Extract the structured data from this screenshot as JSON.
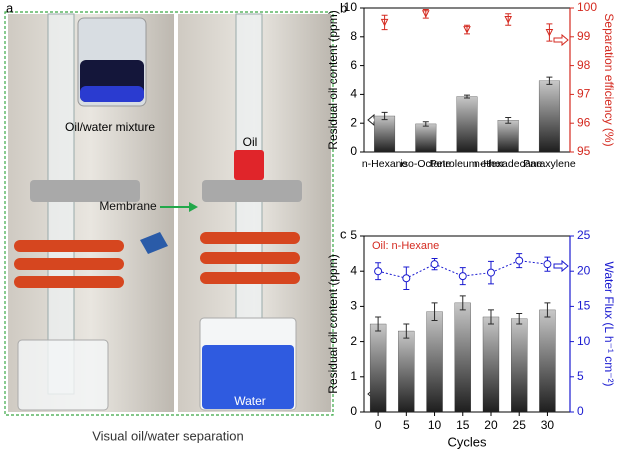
{
  "panel_a": {
    "label": "a",
    "photo_labels": [
      "Oil/water mixture",
      "Oil",
      "Membrane",
      "Water"
    ],
    "caption": "Visual oil/water separation"
  },
  "chart_data": [
    {
      "type": "bar",
      "panel_label": "b",
      "categories": [
        "n-Hexane",
        "iso-Octane",
        "Petroleum ether",
        "n-Hexadecane",
        "Paraxylene"
      ],
      "ylabel": "Residual oil content (ppm)",
      "y2label": "Separation efficiency (%)",
      "y2color": "#d42a20",
      "ylim": [
        0,
        10
      ],
      "yticks": [
        0,
        2,
        4,
        6,
        8,
        10
      ],
      "y2lim": [
        95,
        100
      ],
      "y2ticks": [
        95,
        96,
        97,
        98,
        99,
        100
      ],
      "series": [
        {
          "type": "bar",
          "color": "#2b2b2b",
          "values": [
            2.5,
            1.95,
            3.85,
            2.2,
            4.95
          ],
          "errors": [
            0.25,
            0.15,
            0.1,
            0.2,
            0.25
          ]
        },
        {
          "type": "scatter",
          "axis": "y2",
          "color": "#d42a20",
          "values": [
            99.5,
            99.8,
            99.25,
            99.6,
            99.15
          ],
          "errors": [
            0.25,
            0.15,
            0.15,
            0.2,
            0.3
          ]
        }
      ]
    },
    {
      "type": "bar",
      "panel_label": "c",
      "annotation": "Oil: n-Hexane",
      "annotation_color": "#d42a20",
      "x": [
        0,
        5,
        10,
        15,
        20,
        25,
        30
      ],
      "xlim": [
        -2.5,
        34
      ],
      "xticks": [
        0,
        5,
        10,
        15,
        20,
        25,
        30
      ],
      "xlabel": "Cycles",
      "ylabel": "Residual oil content (ppm)",
      "y2label": "Water Flux (L h⁻¹ cm⁻²)",
      "y2color": "#1a1ad0",
      "ylim": [
        0,
        5
      ],
      "yticks": [
        0,
        1,
        2,
        3,
        4,
        5
      ],
      "y2lim": [
        0,
        25
      ],
      "y2ticks": [
        0,
        5,
        10,
        15,
        20,
        25
      ],
      "series": [
        {
          "type": "bar",
          "color": "#2b2b2b",
          "values": [
            2.5,
            2.3,
            2.85,
            3.1,
            2.7,
            2.65,
            2.9
          ],
          "errors": [
            0.2,
            0.2,
            0.25,
            0.2,
            0.2,
            0.15,
            0.2
          ]
        },
        {
          "type": "line",
          "axis": "y2",
          "color": "#1a1ad0",
          "values": [
            20,
            19,
            21,
            19.3,
            19.8,
            21.5,
            21
          ],
          "errors": [
            1.2,
            1.6,
            0.8,
            1.2,
            1.6,
            1,
            1
          ]
        }
      ]
    }
  ]
}
